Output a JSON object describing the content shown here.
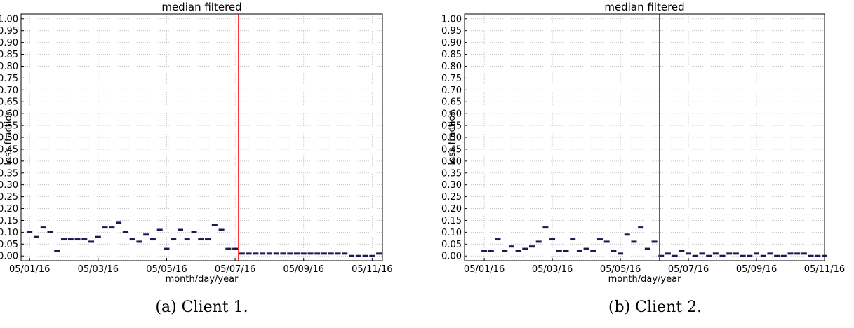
{
  "chart_data": [
    {
      "type": "scatter",
      "title": "median filtered",
      "xlabel": "month/day/year",
      "ylabel": "loss fraction",
      "caption": "(a) Client 1.",
      "color": "#1a1a4e",
      "grid": true,
      "xlim": [
        0.75,
        11.3
      ],
      "ylim": [
        -0.02,
        1.02
      ],
      "xticks": [
        {
          "value": 1,
          "label": "05/01/16"
        },
        {
          "value": 3,
          "label": "05/03/16"
        },
        {
          "value": 5,
          "label": "05/05/16"
        },
        {
          "value": 7,
          "label": "05/07/16"
        },
        {
          "value": 9,
          "label": "05/09/16"
        },
        {
          "value": 11,
          "label": "05/11/16"
        }
      ],
      "yticks": [
        {
          "value": 0,
          "label": "0.00"
        },
        {
          "value": 0.05,
          "label": "0.05"
        },
        {
          "value": 0.1,
          "label": "0.10"
        },
        {
          "value": 0.15,
          "label": "0.15"
        },
        {
          "value": 0.2,
          "label": "0.20"
        },
        {
          "value": 0.25,
          "label": "0.25"
        },
        {
          "value": 0.3,
          "label": "0.30"
        },
        {
          "value": 0.35,
          "label": "0.35"
        },
        {
          "value": 0.4,
          "label": "0.40"
        },
        {
          "value": 0.45,
          "label": "0.45"
        },
        {
          "value": 0.5,
          "label": "0.50"
        },
        {
          "value": 0.55,
          "label": "0.55"
        },
        {
          "value": 0.6,
          "label": "0.60"
        },
        {
          "value": 0.65,
          "label": "0.65"
        },
        {
          "value": 0.7,
          "label": "0.70"
        },
        {
          "value": 0.75,
          "label": "0.75"
        },
        {
          "value": 0.8,
          "label": "0.80"
        },
        {
          "value": 0.85,
          "label": "0.85"
        },
        {
          "value": 0.9,
          "label": "0.90"
        },
        {
          "value": 0.95,
          "label": "0.95"
        },
        {
          "value": 1,
          "label": "1.00"
        }
      ],
      "vline": {
        "x": 7.1,
        "color": "#ff0000"
      },
      "x": [
        1.0,
        1.2,
        1.4,
        1.6,
        1.8,
        2.0,
        2.2,
        2.4,
        2.6,
        2.8,
        3.0,
        3.2,
        3.4,
        3.6,
        3.8,
        4.0,
        4.2,
        4.4,
        4.6,
        4.8,
        5.0,
        5.2,
        5.4,
        5.6,
        5.8,
        6.0,
        6.2,
        6.4,
        6.6,
        6.8,
        7.0,
        7.2,
        7.4,
        7.6,
        7.8,
        8.0,
        8.2,
        8.4,
        8.6,
        8.8,
        9.0,
        9.2,
        9.4,
        9.6,
        9.8,
        10.0,
        10.2,
        10.4,
        10.6,
        10.8,
        11.0,
        11.2
      ],
      "values": [
        0.1,
        0.08,
        0.12,
        0.1,
        0.02,
        0.07,
        0.07,
        0.07,
        0.07,
        0.06,
        0.08,
        0.12,
        0.12,
        0.14,
        0.1,
        0.07,
        0.06,
        0.09,
        0.07,
        0.11,
        0.03,
        0.07,
        0.11,
        0.07,
        0.1,
        0.07,
        0.07,
        0.13,
        0.11,
        0.03,
        0.03,
        0.01,
        0.01,
        0.01,
        0.01,
        0.01,
        0.01,
        0.01,
        0.01,
        0.01,
        0.01,
        0.01,
        0.01,
        0.01,
        0.01,
        0.01,
        0.01,
        0,
        0,
        0,
        0,
        0.01
      ]
    },
    {
      "type": "scatter",
      "title": "median filtered",
      "xlabel": "month/day/year",
      "ylabel": "loss fraction",
      "caption": "(b) Client 2.",
      "color": "#1a1a4e",
      "grid": true,
      "xlim": [
        0.42,
        11.0
      ],
      "ylim": [
        -0.02,
        1.02
      ],
      "xticks": [
        {
          "value": 1,
          "label": "05/01/16"
        },
        {
          "value": 3,
          "label": "05/03/16"
        },
        {
          "value": 5,
          "label": "05/05/16"
        },
        {
          "value": 7,
          "label": "05/07/16"
        },
        {
          "value": 9,
          "label": "05/09/16"
        },
        {
          "value": 11,
          "label": "05/11/16"
        }
      ],
      "yticks": [
        {
          "value": 0,
          "label": "0.00"
        },
        {
          "value": 0.05,
          "label": "0.05"
        },
        {
          "value": 0.1,
          "label": "0.10"
        },
        {
          "value": 0.15,
          "label": "0.15"
        },
        {
          "value": 0.2,
          "label": "0.20"
        },
        {
          "value": 0.25,
          "label": "0.25"
        },
        {
          "value": 0.3,
          "label": "0.30"
        },
        {
          "value": 0.35,
          "label": "0.35"
        },
        {
          "value": 0.4,
          "label": "0.40"
        },
        {
          "value": 0.45,
          "label": "0.45"
        },
        {
          "value": 0.5,
          "label": "0.50"
        },
        {
          "value": 0.55,
          "label": "0.55"
        },
        {
          "value": 0.6,
          "label": "0.60"
        },
        {
          "value": 0.65,
          "label": "0.65"
        },
        {
          "value": 0.7,
          "label": "0.70"
        },
        {
          "value": 0.75,
          "label": "0.75"
        },
        {
          "value": 0.8,
          "label": "0.80"
        },
        {
          "value": 0.85,
          "label": "0.85"
        },
        {
          "value": 0.9,
          "label": "0.90"
        },
        {
          "value": 0.95,
          "label": "0.95"
        },
        {
          "value": 1,
          "label": "1.00"
        }
      ],
      "vline": {
        "x": 6.15,
        "color": "#ff0000"
      },
      "x": [
        1.0,
        1.2,
        1.4,
        1.6,
        1.8,
        2.0,
        2.2,
        2.4,
        2.6,
        2.8,
        3.0,
        3.2,
        3.4,
        3.6,
        3.8,
        4.0,
        4.2,
        4.4,
        4.6,
        4.8,
        5.0,
        5.2,
        5.4,
        5.6,
        5.8,
        6.0,
        6.2,
        6.4,
        6.6,
        6.8,
        7.0,
        7.2,
        7.4,
        7.6,
        7.8,
        8.0,
        8.2,
        8.4,
        8.6,
        8.8,
        9.0,
        9.2,
        9.4,
        9.6,
        9.8,
        10.0,
        10.2,
        10.4,
        10.6,
        10.8,
        11.0
      ],
      "values": [
        0.02,
        0.02,
        0.07,
        0.02,
        0.04,
        0.02,
        0.03,
        0.04,
        0.06,
        0.12,
        0.07,
        0.02,
        0.02,
        0.07,
        0.02,
        0.03,
        0.02,
        0.07,
        0.06,
        0.02,
        0.01,
        0.09,
        0.06,
        0.12,
        0.03,
        0.06,
        0,
        0.01,
        0,
        0.02,
        0.01,
        0,
        0.01,
        0,
        0.01,
        0,
        0.01,
        0.01,
        0,
        0,
        0.01,
        0,
        0.01,
        0,
        0,
        0.01,
        0.01,
        0.01,
        0,
        0,
        0
      ]
    }
  ]
}
